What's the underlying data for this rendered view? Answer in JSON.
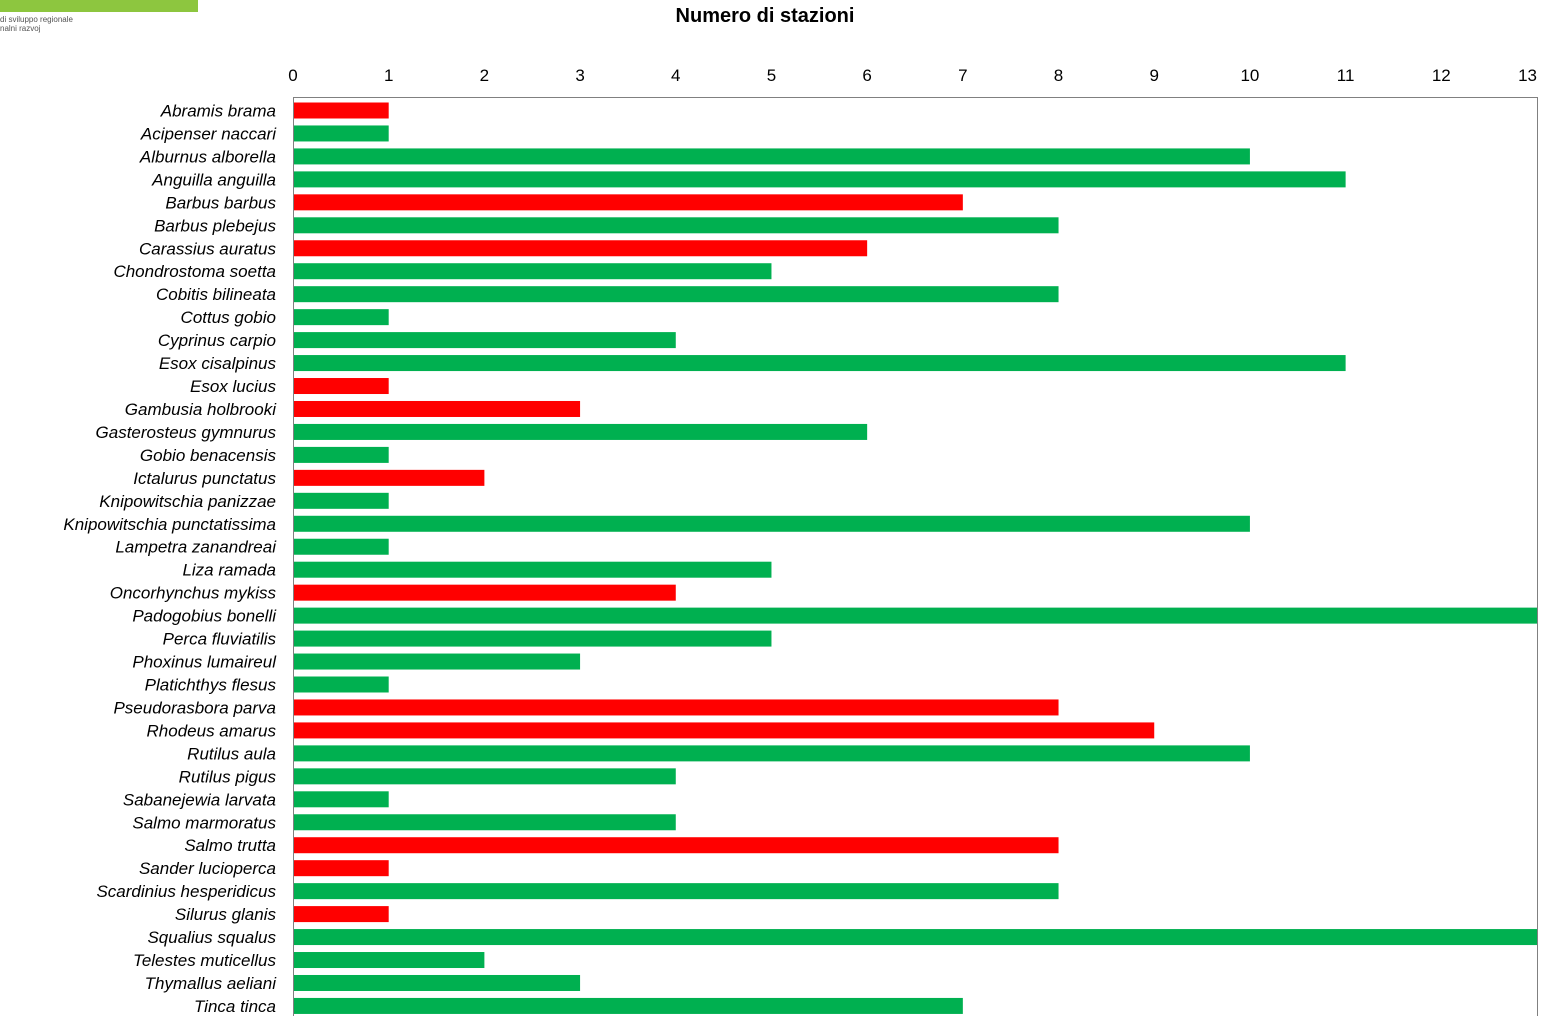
{
  "logo": {
    "line1": "di sviluppo regionale",
    "line2": "nalni razvoj"
  },
  "colors": {
    "native": "#00b050",
    "alien": "#ff0000"
  },
  "chart_data": {
    "type": "bar",
    "orientation": "horizontal",
    "title": "Numero di stazioni",
    "xlim": [
      0,
      13
    ],
    "x_ticks": [
      0,
      1,
      2,
      3,
      4,
      5,
      6,
      7,
      8,
      9,
      10,
      11,
      12,
      13
    ],
    "x_axis_position": "top",
    "grid": false,
    "legend": "none",
    "categories": [
      "Abramis brama",
      "Acipenser naccari",
      "Alburnus alborella",
      "Anguilla anguilla",
      "Barbus barbus",
      "Barbus plebejus",
      "Carassius auratus",
      "Chondrostoma soetta",
      "Cobitis bilineata",
      "Cottus gobio",
      "Cyprinus carpio",
      "Esox cisalpinus",
      "Esox lucius",
      "Gambusia holbrooki",
      "Gasterosteus gymnurus",
      "Gobio benacensis",
      "Ictalurus punctatus",
      "Knipowitschia panizzae",
      "Knipowitschia punctatissima",
      "Lampetra zanandreai",
      "Liza ramada",
      "Oncorhynchus mykiss",
      "Padogobius bonelli",
      "Perca fluviatilis",
      "Phoxinus lumaireul",
      "Platichthys flesus",
      "Pseudorasbora parva",
      "Rhodeus amarus",
      "Rutilus aula",
      "Rutilus pigus",
      "Sabanejewia larvata",
      "Salmo marmoratus",
      "Salmo trutta",
      "Sander lucioperca",
      "Scardinius hesperidicus",
      "Silurus glanis",
      "Squalius squalus",
      "Telestes muticellus",
      "Thymallus aeliani",
      "Tinca tinca"
    ],
    "values": [
      1,
      1,
      10,
      11,
      7,
      8,
      6,
      5,
      8,
      1,
      4,
      11,
      1,
      3,
      6,
      1,
      2,
      1,
      10,
      1,
      5,
      4,
      13,
      5,
      3,
      1,
      8,
      9,
      10,
      4,
      1,
      4,
      8,
      1,
      8,
      1,
      13,
      2,
      3,
      7
    ],
    "bar_colors": [
      "#ff0000",
      "#00b050",
      "#00b050",
      "#00b050",
      "#ff0000",
      "#00b050",
      "#ff0000",
      "#00b050",
      "#00b050",
      "#00b050",
      "#00b050",
      "#00b050",
      "#ff0000",
      "#ff0000",
      "#00b050",
      "#00b050",
      "#ff0000",
      "#00b050",
      "#00b050",
      "#00b050",
      "#00b050",
      "#ff0000",
      "#00b050",
      "#00b050",
      "#00b050",
      "#00b050",
      "#ff0000",
      "#ff0000",
      "#00b050",
      "#00b050",
      "#00b050",
      "#00b050",
      "#ff0000",
      "#ff0000",
      "#00b050",
      "#ff0000",
      "#00b050",
      "#00b050",
      "#00b050",
      "#00b050"
    ]
  }
}
